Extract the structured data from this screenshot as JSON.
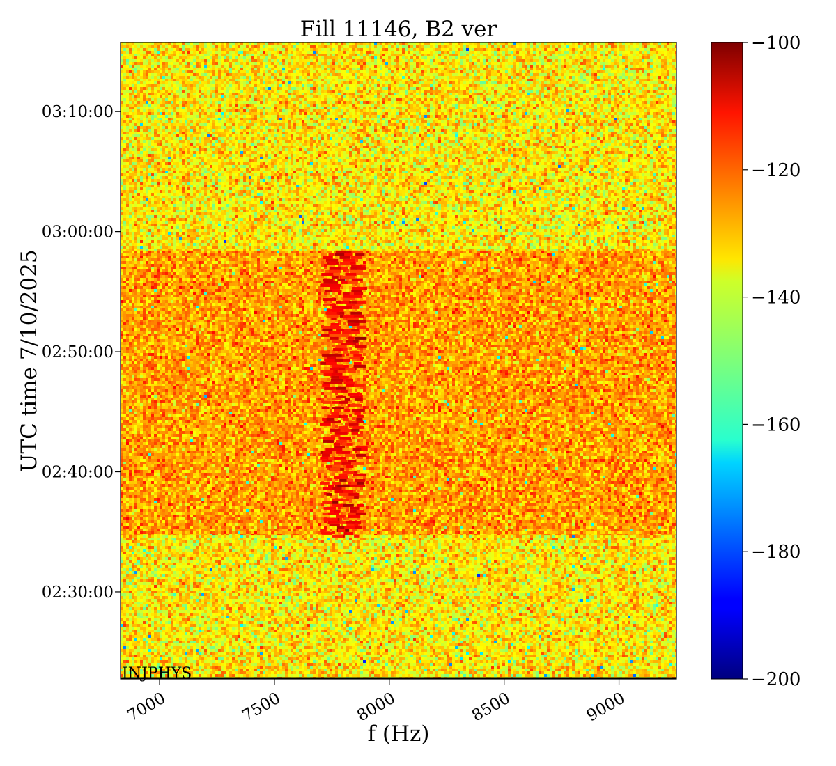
{
  "chart_data": {
    "type": "heatmap",
    "title": "Fill 11146, B2 ver",
    "xlabel": "f (Hz)",
    "ylabel": "UTC time 7/10/2025",
    "xlim": [
      6830,
      9250
    ],
    "x_ticks": [
      {
        "value": 7000,
        "label": "7000"
      },
      {
        "value": 7500,
        "label": "7500"
      },
      {
        "value": 8000,
        "label": "8000"
      },
      {
        "value": 8500,
        "label": "8500"
      },
      {
        "value": 9000,
        "label": "9000"
      }
    ],
    "ylim": [
      "02:22:45",
      "03:15:45"
    ],
    "y_ticks": [
      {
        "value": "02:30:00",
        "label": "02:30:00"
      },
      {
        "value": "02:40:00",
        "label": "02:40:00"
      },
      {
        "value": "02:50:00",
        "label": "02:50:00"
      },
      {
        "value": "03:00:00",
        "label": "03:00:00"
      },
      {
        "value": "03:10:00",
        "label": "03:10:00"
      }
    ],
    "colorbar": {
      "colormap": "jet",
      "range": [
        -200,
        -100
      ],
      "ticks": [
        {
          "value": -100,
          "label": "−100"
        },
        {
          "value": -120,
          "label": "−120"
        },
        {
          "value": -140,
          "label": "−140"
        },
        {
          "value": -160,
          "label": "−160"
        },
        {
          "value": -180,
          "label": "−180"
        },
        {
          "value": -200,
          "label": "−200"
        }
      ]
    },
    "regions": [
      {
        "time_start": "02:22:45",
        "time_end": "02:34:45",
        "level_db": -136,
        "spread_db": 7
      },
      {
        "time_start": "02:34:45",
        "time_end": "02:58:25",
        "level_db": -128,
        "spread_db": 6
      },
      {
        "time_start": "02:58:25",
        "time_end": "03:15:45",
        "level_db": -136,
        "spread_db": 7
      }
    ],
    "features": [
      {
        "type": "line",
        "f_start_hz": 7700,
        "f_end_hz": 7860,
        "time_start": "02:34:45",
        "time_end": "02:58:25",
        "level_db": -112
      }
    ],
    "annotation": "INJPHYS",
    "grid": false
  }
}
